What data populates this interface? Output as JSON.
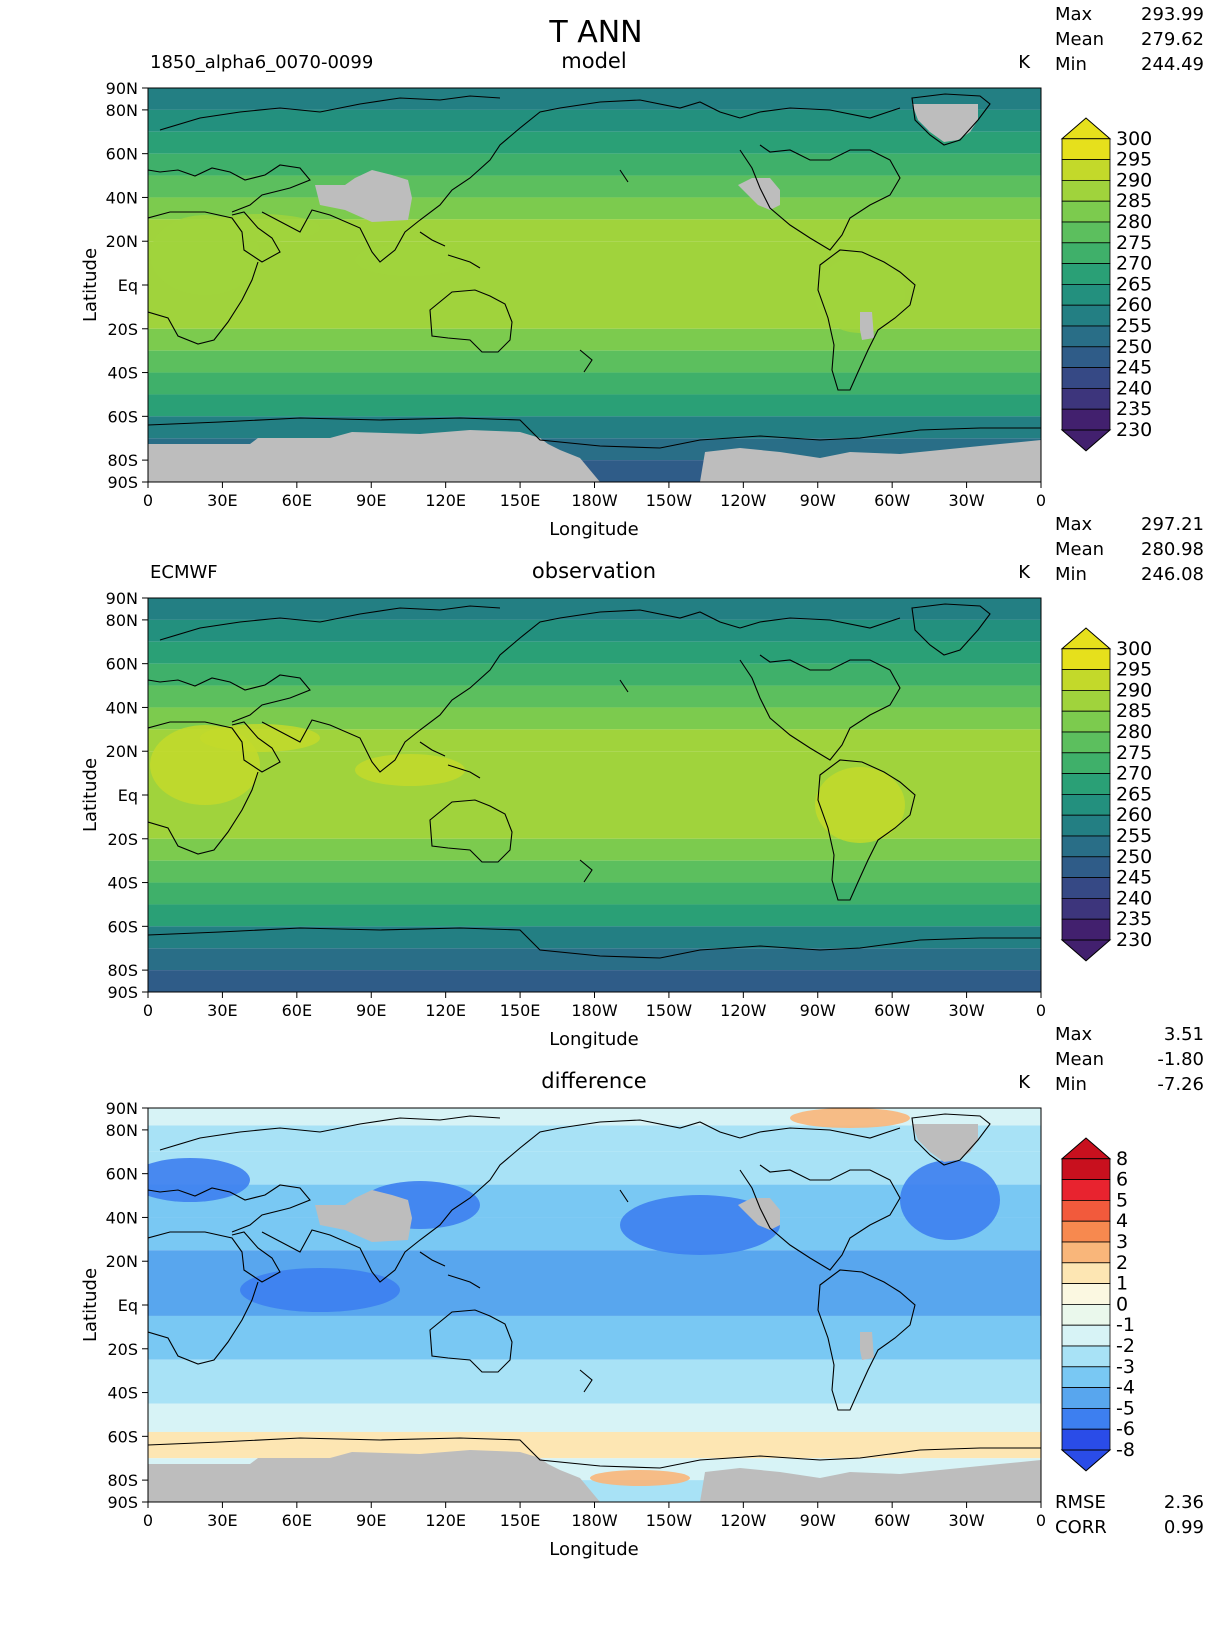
{
  "figure": {
    "title": "T ANN"
  },
  "colors": {
    "land_mask": "#bdbdbd",
    "coast": "#000000"
  },
  "chart_data": [
    {
      "type": "heatmap",
      "panel": "model",
      "title": "model",
      "left_label": "1850_alpha6_0070-0099",
      "units": "K",
      "stats": [
        {
          "label": "Max",
          "value": "293.99"
        },
        {
          "label": "Mean",
          "value": "279.62"
        },
        {
          "label": "Min",
          "value": "244.49"
        }
      ],
      "xlabel": "Longitude",
      "ylabel": "Latitude",
      "x_ticks": [
        "0",
        "30E",
        "60E",
        "90E",
        "120E",
        "150E",
        "180W",
        "150W",
        "120W",
        "90W",
        "60W",
        "30W",
        "0"
      ],
      "y_ticks": [
        "90N",
        "80N",
        "60N",
        "40N",
        "20N",
        "Eq",
        "20S",
        "40S",
        "60S",
        "80S",
        "90S"
      ],
      "colorbar": {
        "levels": [
          "300",
          "295",
          "290",
          "285",
          "280",
          "275",
          "270",
          "265",
          "260",
          "255",
          "250",
          "245",
          "240",
          "235",
          "230"
        ],
        "colors": [
          "#e6e01c",
          "#c3d92a",
          "#a0d33c",
          "#7ccb4e",
          "#5cbf5e",
          "#3fb06a",
          "#2aa076",
          "#23907e",
          "#237f83",
          "#296e87",
          "#2f5c88",
          "#364985",
          "#3d357c",
          "#42206e"
        ]
      }
    },
    {
      "type": "heatmap",
      "panel": "observation",
      "title": "observation",
      "left_label": "ECMWF",
      "units": "K",
      "stats": [
        {
          "label": "Max",
          "value": "297.21"
        },
        {
          "label": "Mean",
          "value": "280.98"
        },
        {
          "label": "Min",
          "value": "246.08"
        }
      ],
      "xlabel": "Longitude",
      "ylabel": "Latitude",
      "x_ticks": [
        "0",
        "30E",
        "60E",
        "90E",
        "120E",
        "150E",
        "180W",
        "150W",
        "120W",
        "90W",
        "60W",
        "30W",
        "0"
      ],
      "y_ticks": [
        "90N",
        "80N",
        "60N",
        "40N",
        "20N",
        "Eq",
        "20S",
        "40S",
        "60S",
        "80S",
        "90S"
      ],
      "colorbar": {
        "levels": [
          "300",
          "295",
          "290",
          "285",
          "280",
          "275",
          "270",
          "265",
          "260",
          "255",
          "250",
          "245",
          "240",
          "235",
          "230"
        ],
        "colors": [
          "#e6e01c",
          "#c3d92a",
          "#a0d33c",
          "#7ccb4e",
          "#5cbf5e",
          "#3fb06a",
          "#2aa076",
          "#23907e",
          "#237f83",
          "#296e87",
          "#2f5c88",
          "#364985",
          "#3d357c",
          "#42206e"
        ]
      }
    },
    {
      "type": "heatmap",
      "panel": "difference",
      "title": "difference",
      "left_label": "",
      "units": "K",
      "stats": [
        {
          "label": "Max",
          "value": "3.51"
        },
        {
          "label": "Mean",
          "value": "-1.80"
        },
        {
          "label": "Min",
          "value": "-7.26"
        }
      ],
      "extra_stats": [
        {
          "label": "RMSE",
          "value": "2.36"
        },
        {
          "label": "CORR",
          "value": "0.99"
        }
      ],
      "xlabel": "Longitude",
      "ylabel": "Latitude",
      "x_ticks": [
        "0",
        "30E",
        "60E",
        "90E",
        "120E",
        "150E",
        "180W",
        "150W",
        "120W",
        "90W",
        "60W",
        "30W",
        "0"
      ],
      "y_ticks": [
        "90N",
        "80N",
        "60N",
        "40N",
        "20N",
        "Eq",
        "20S",
        "40S",
        "60S",
        "80S",
        "90S"
      ],
      "colorbar": {
        "levels": [
          "8",
          "6",
          "5",
          "4",
          "3",
          "2",
          "1",
          "0",
          "-1",
          "-2",
          "-3",
          "-4",
          "-5",
          "-6",
          "-8"
        ],
        "colors": [
          "#c8101e",
          "#e8232f",
          "#f25a3c",
          "#f7894f",
          "#f9b67a",
          "#fde6b3",
          "#fbf8e1",
          "#eaf8ec",
          "#d7f3f6",
          "#a8e2f6",
          "#79c8f3",
          "#58a6ee",
          "#3d7ff0",
          "#2a4ce8"
        ]
      }
    }
  ]
}
